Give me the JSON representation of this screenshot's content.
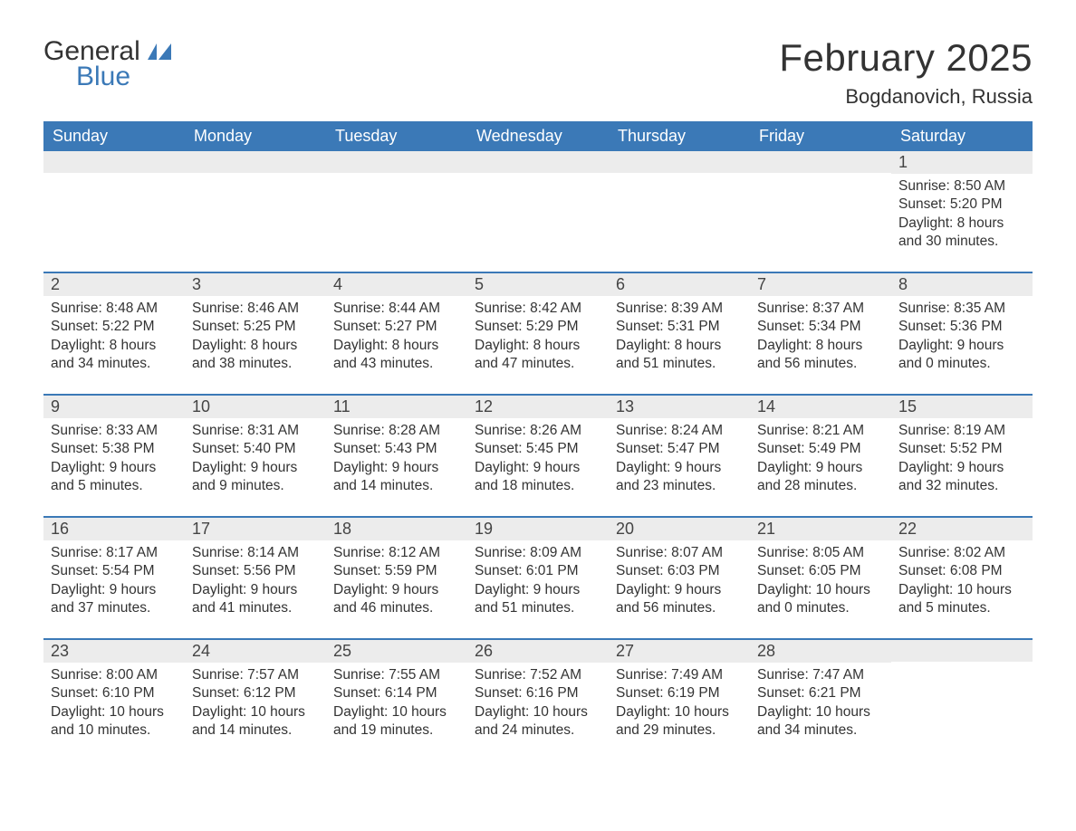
{
  "logo": {
    "text_general": "General",
    "text_blue": "Blue"
  },
  "title": "February 2025",
  "location": "Bogdanovich, Russia",
  "colors": {
    "header_bg": "#3b79b7",
    "header_text": "#ffffff",
    "daynum_bg": "#ececec",
    "body_text": "#333333",
    "rule": "#3b79b7",
    "page_bg": "#ffffff"
  },
  "day_names": [
    "Sunday",
    "Monday",
    "Tuesday",
    "Wednesday",
    "Thursday",
    "Friday",
    "Saturday"
  ],
  "weeks": [
    [
      {
        "day": "",
        "sunrise": "",
        "sunset": "",
        "daylight1": "",
        "daylight2": ""
      },
      {
        "day": "",
        "sunrise": "",
        "sunset": "",
        "daylight1": "",
        "daylight2": ""
      },
      {
        "day": "",
        "sunrise": "",
        "sunset": "",
        "daylight1": "",
        "daylight2": ""
      },
      {
        "day": "",
        "sunrise": "",
        "sunset": "",
        "daylight1": "",
        "daylight2": ""
      },
      {
        "day": "",
        "sunrise": "",
        "sunset": "",
        "daylight1": "",
        "daylight2": ""
      },
      {
        "day": "",
        "sunrise": "",
        "sunset": "",
        "daylight1": "",
        "daylight2": ""
      },
      {
        "day": "1",
        "sunrise": "Sunrise: 8:50 AM",
        "sunset": "Sunset: 5:20 PM",
        "daylight1": "Daylight: 8 hours",
        "daylight2": "and 30 minutes."
      }
    ],
    [
      {
        "day": "2",
        "sunrise": "Sunrise: 8:48 AM",
        "sunset": "Sunset: 5:22 PM",
        "daylight1": "Daylight: 8 hours",
        "daylight2": "and 34 minutes."
      },
      {
        "day": "3",
        "sunrise": "Sunrise: 8:46 AM",
        "sunset": "Sunset: 5:25 PM",
        "daylight1": "Daylight: 8 hours",
        "daylight2": "and 38 minutes."
      },
      {
        "day": "4",
        "sunrise": "Sunrise: 8:44 AM",
        "sunset": "Sunset: 5:27 PM",
        "daylight1": "Daylight: 8 hours",
        "daylight2": "and 43 minutes."
      },
      {
        "day": "5",
        "sunrise": "Sunrise: 8:42 AM",
        "sunset": "Sunset: 5:29 PM",
        "daylight1": "Daylight: 8 hours",
        "daylight2": "and 47 minutes."
      },
      {
        "day": "6",
        "sunrise": "Sunrise: 8:39 AM",
        "sunset": "Sunset: 5:31 PM",
        "daylight1": "Daylight: 8 hours",
        "daylight2": "and 51 minutes."
      },
      {
        "day": "7",
        "sunrise": "Sunrise: 8:37 AM",
        "sunset": "Sunset: 5:34 PM",
        "daylight1": "Daylight: 8 hours",
        "daylight2": "and 56 minutes."
      },
      {
        "day": "8",
        "sunrise": "Sunrise: 8:35 AM",
        "sunset": "Sunset: 5:36 PM",
        "daylight1": "Daylight: 9 hours",
        "daylight2": "and 0 minutes."
      }
    ],
    [
      {
        "day": "9",
        "sunrise": "Sunrise: 8:33 AM",
        "sunset": "Sunset: 5:38 PM",
        "daylight1": "Daylight: 9 hours",
        "daylight2": "and 5 minutes."
      },
      {
        "day": "10",
        "sunrise": "Sunrise: 8:31 AM",
        "sunset": "Sunset: 5:40 PM",
        "daylight1": "Daylight: 9 hours",
        "daylight2": "and 9 minutes."
      },
      {
        "day": "11",
        "sunrise": "Sunrise: 8:28 AM",
        "sunset": "Sunset: 5:43 PM",
        "daylight1": "Daylight: 9 hours",
        "daylight2": "and 14 minutes."
      },
      {
        "day": "12",
        "sunrise": "Sunrise: 8:26 AM",
        "sunset": "Sunset: 5:45 PM",
        "daylight1": "Daylight: 9 hours",
        "daylight2": "and 18 minutes."
      },
      {
        "day": "13",
        "sunrise": "Sunrise: 8:24 AM",
        "sunset": "Sunset: 5:47 PM",
        "daylight1": "Daylight: 9 hours",
        "daylight2": "and 23 minutes."
      },
      {
        "day": "14",
        "sunrise": "Sunrise: 8:21 AM",
        "sunset": "Sunset: 5:49 PM",
        "daylight1": "Daylight: 9 hours",
        "daylight2": "and 28 minutes."
      },
      {
        "day": "15",
        "sunrise": "Sunrise: 8:19 AM",
        "sunset": "Sunset: 5:52 PM",
        "daylight1": "Daylight: 9 hours",
        "daylight2": "and 32 minutes."
      }
    ],
    [
      {
        "day": "16",
        "sunrise": "Sunrise: 8:17 AM",
        "sunset": "Sunset: 5:54 PM",
        "daylight1": "Daylight: 9 hours",
        "daylight2": "and 37 minutes."
      },
      {
        "day": "17",
        "sunrise": "Sunrise: 8:14 AM",
        "sunset": "Sunset: 5:56 PM",
        "daylight1": "Daylight: 9 hours",
        "daylight2": "and 41 minutes."
      },
      {
        "day": "18",
        "sunrise": "Sunrise: 8:12 AM",
        "sunset": "Sunset: 5:59 PM",
        "daylight1": "Daylight: 9 hours",
        "daylight2": "and 46 minutes."
      },
      {
        "day": "19",
        "sunrise": "Sunrise: 8:09 AM",
        "sunset": "Sunset: 6:01 PM",
        "daylight1": "Daylight: 9 hours",
        "daylight2": "and 51 minutes."
      },
      {
        "day": "20",
        "sunrise": "Sunrise: 8:07 AM",
        "sunset": "Sunset: 6:03 PM",
        "daylight1": "Daylight: 9 hours",
        "daylight2": "and 56 minutes."
      },
      {
        "day": "21",
        "sunrise": "Sunrise: 8:05 AM",
        "sunset": "Sunset: 6:05 PM",
        "daylight1": "Daylight: 10 hours",
        "daylight2": "and 0 minutes."
      },
      {
        "day": "22",
        "sunrise": "Sunrise: 8:02 AM",
        "sunset": "Sunset: 6:08 PM",
        "daylight1": "Daylight: 10 hours",
        "daylight2": "and 5 minutes."
      }
    ],
    [
      {
        "day": "23",
        "sunrise": "Sunrise: 8:00 AM",
        "sunset": "Sunset: 6:10 PM",
        "daylight1": "Daylight: 10 hours",
        "daylight2": "and 10 minutes."
      },
      {
        "day": "24",
        "sunrise": "Sunrise: 7:57 AM",
        "sunset": "Sunset: 6:12 PM",
        "daylight1": "Daylight: 10 hours",
        "daylight2": "and 14 minutes."
      },
      {
        "day": "25",
        "sunrise": "Sunrise: 7:55 AM",
        "sunset": "Sunset: 6:14 PM",
        "daylight1": "Daylight: 10 hours",
        "daylight2": "and 19 minutes."
      },
      {
        "day": "26",
        "sunrise": "Sunrise: 7:52 AM",
        "sunset": "Sunset: 6:16 PM",
        "daylight1": "Daylight: 10 hours",
        "daylight2": "and 24 minutes."
      },
      {
        "day": "27",
        "sunrise": "Sunrise: 7:49 AM",
        "sunset": "Sunset: 6:19 PM",
        "daylight1": "Daylight: 10 hours",
        "daylight2": "and 29 minutes."
      },
      {
        "day": "28",
        "sunrise": "Sunrise: 7:47 AM",
        "sunset": "Sunset: 6:21 PM",
        "daylight1": "Daylight: 10 hours",
        "daylight2": "and 34 minutes."
      },
      {
        "day": "",
        "sunrise": "",
        "sunset": "",
        "daylight1": "",
        "daylight2": ""
      }
    ]
  ]
}
